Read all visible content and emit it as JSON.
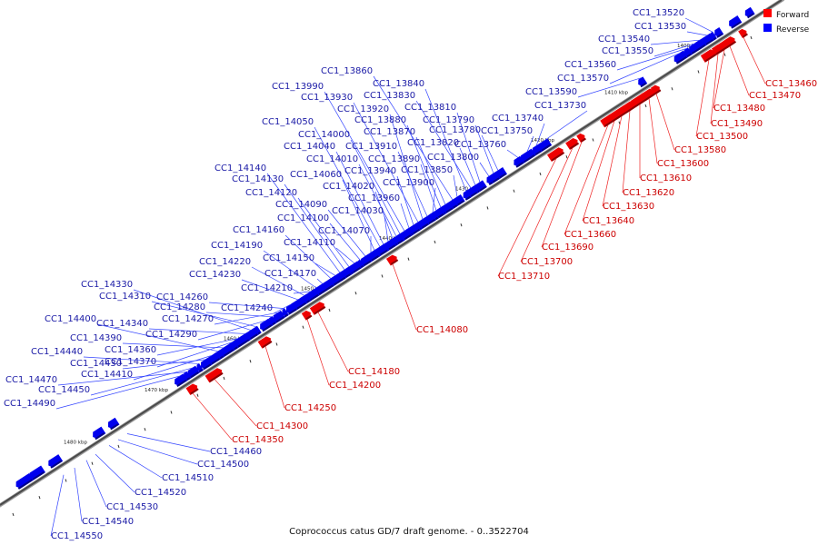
{
  "caption": "Coprococcus catus GD/7 draft genome. - 0..3522704",
  "legend": [
    {
      "label": "Forward",
      "color": "#ff0000"
    },
    {
      "label": "Reverse",
      "color": "#0000ff"
    }
  ],
  "ruler": [
    "1400 kbp",
    "1410 kbp",
    "1420 kbp",
    "1430 kbp",
    "1440 kbp",
    "1450 kbp",
    "1460 kbp",
    "1470 kbp",
    "1480 kbp"
  ],
  "forward_genes": [
    "CC1_13460",
    "CC1_13470",
    "CC1_13480",
    "CC1_13490",
    "CC1_13500",
    "CC1_13580",
    "CC1_13600",
    "CC1_13610",
    "CC1_13620",
    "CC1_13630",
    "CC1_13640",
    "CC1_13660",
    "CC1_13690",
    "CC1_13700",
    "CC1_13710",
    "CC1_14080",
    "CC1_14180",
    "CC1_14200",
    "CC1_14250",
    "CC1_14300",
    "CC1_14350"
  ],
  "reverse_top": [
    "CC1_13520",
    "CC1_13530",
    "CC1_13540",
    "CC1_13550",
    "CC1_13560",
    "CC1_13570",
    "CC1_13590",
    "CC1_13730",
    "CC1_13740",
    "CC1_13750",
    "CC1_13760",
    "CC1_13780",
    "CC1_13790",
    "CC1_13800",
    "CC1_13810",
    "CC1_13820",
    "CC1_13830",
    "CC1_13840",
    "CC1_13850",
    "CC1_13860",
    "CC1_13870",
    "CC1_13880",
    "CC1_13890",
    "CC1_13900",
    "CC1_13910",
    "CC1_13920",
    "CC1_13930",
    "CC1_13940",
    "CC1_13960",
    "CC1_13990",
    "CC1_14000",
    "CC1_14010",
    "CC1_14020",
    "CC1_14030",
    "CC1_14040",
    "CC1_14050",
    "CC1_14060",
    "CC1_14070",
    "CC1_14090",
    "CC1_14100",
    "CC1_14110",
    "CC1_14120",
    "CC1_14130",
    "CC1_14140",
    "CC1_14150",
    "CC1_14160",
    "CC1_14170",
    "CC1_14190",
    "CC1_14210",
    "CC1_14220",
    "CC1_14230",
    "CC1_14240",
    "CC1_14260",
    "CC1_14270",
    "CC1_14280",
    "CC1_14290",
    "CC1_14310",
    "CC1_14330",
    "CC1_14340",
    "CC1_14360",
    "CC1_14370",
    "CC1_14390",
    "CC1_14400",
    "CC1_14410",
    "CC1_14430",
    "CC1_14440",
    "CC1_14450",
    "CC1_14470",
    "CC1_14490"
  ],
  "reverse_bottom": [
    "CC1_14460",
    "CC1_14500",
    "CC1_14510",
    "CC1_14520",
    "CC1_14530",
    "CC1_14540",
    "CC1_14550"
  ]
}
